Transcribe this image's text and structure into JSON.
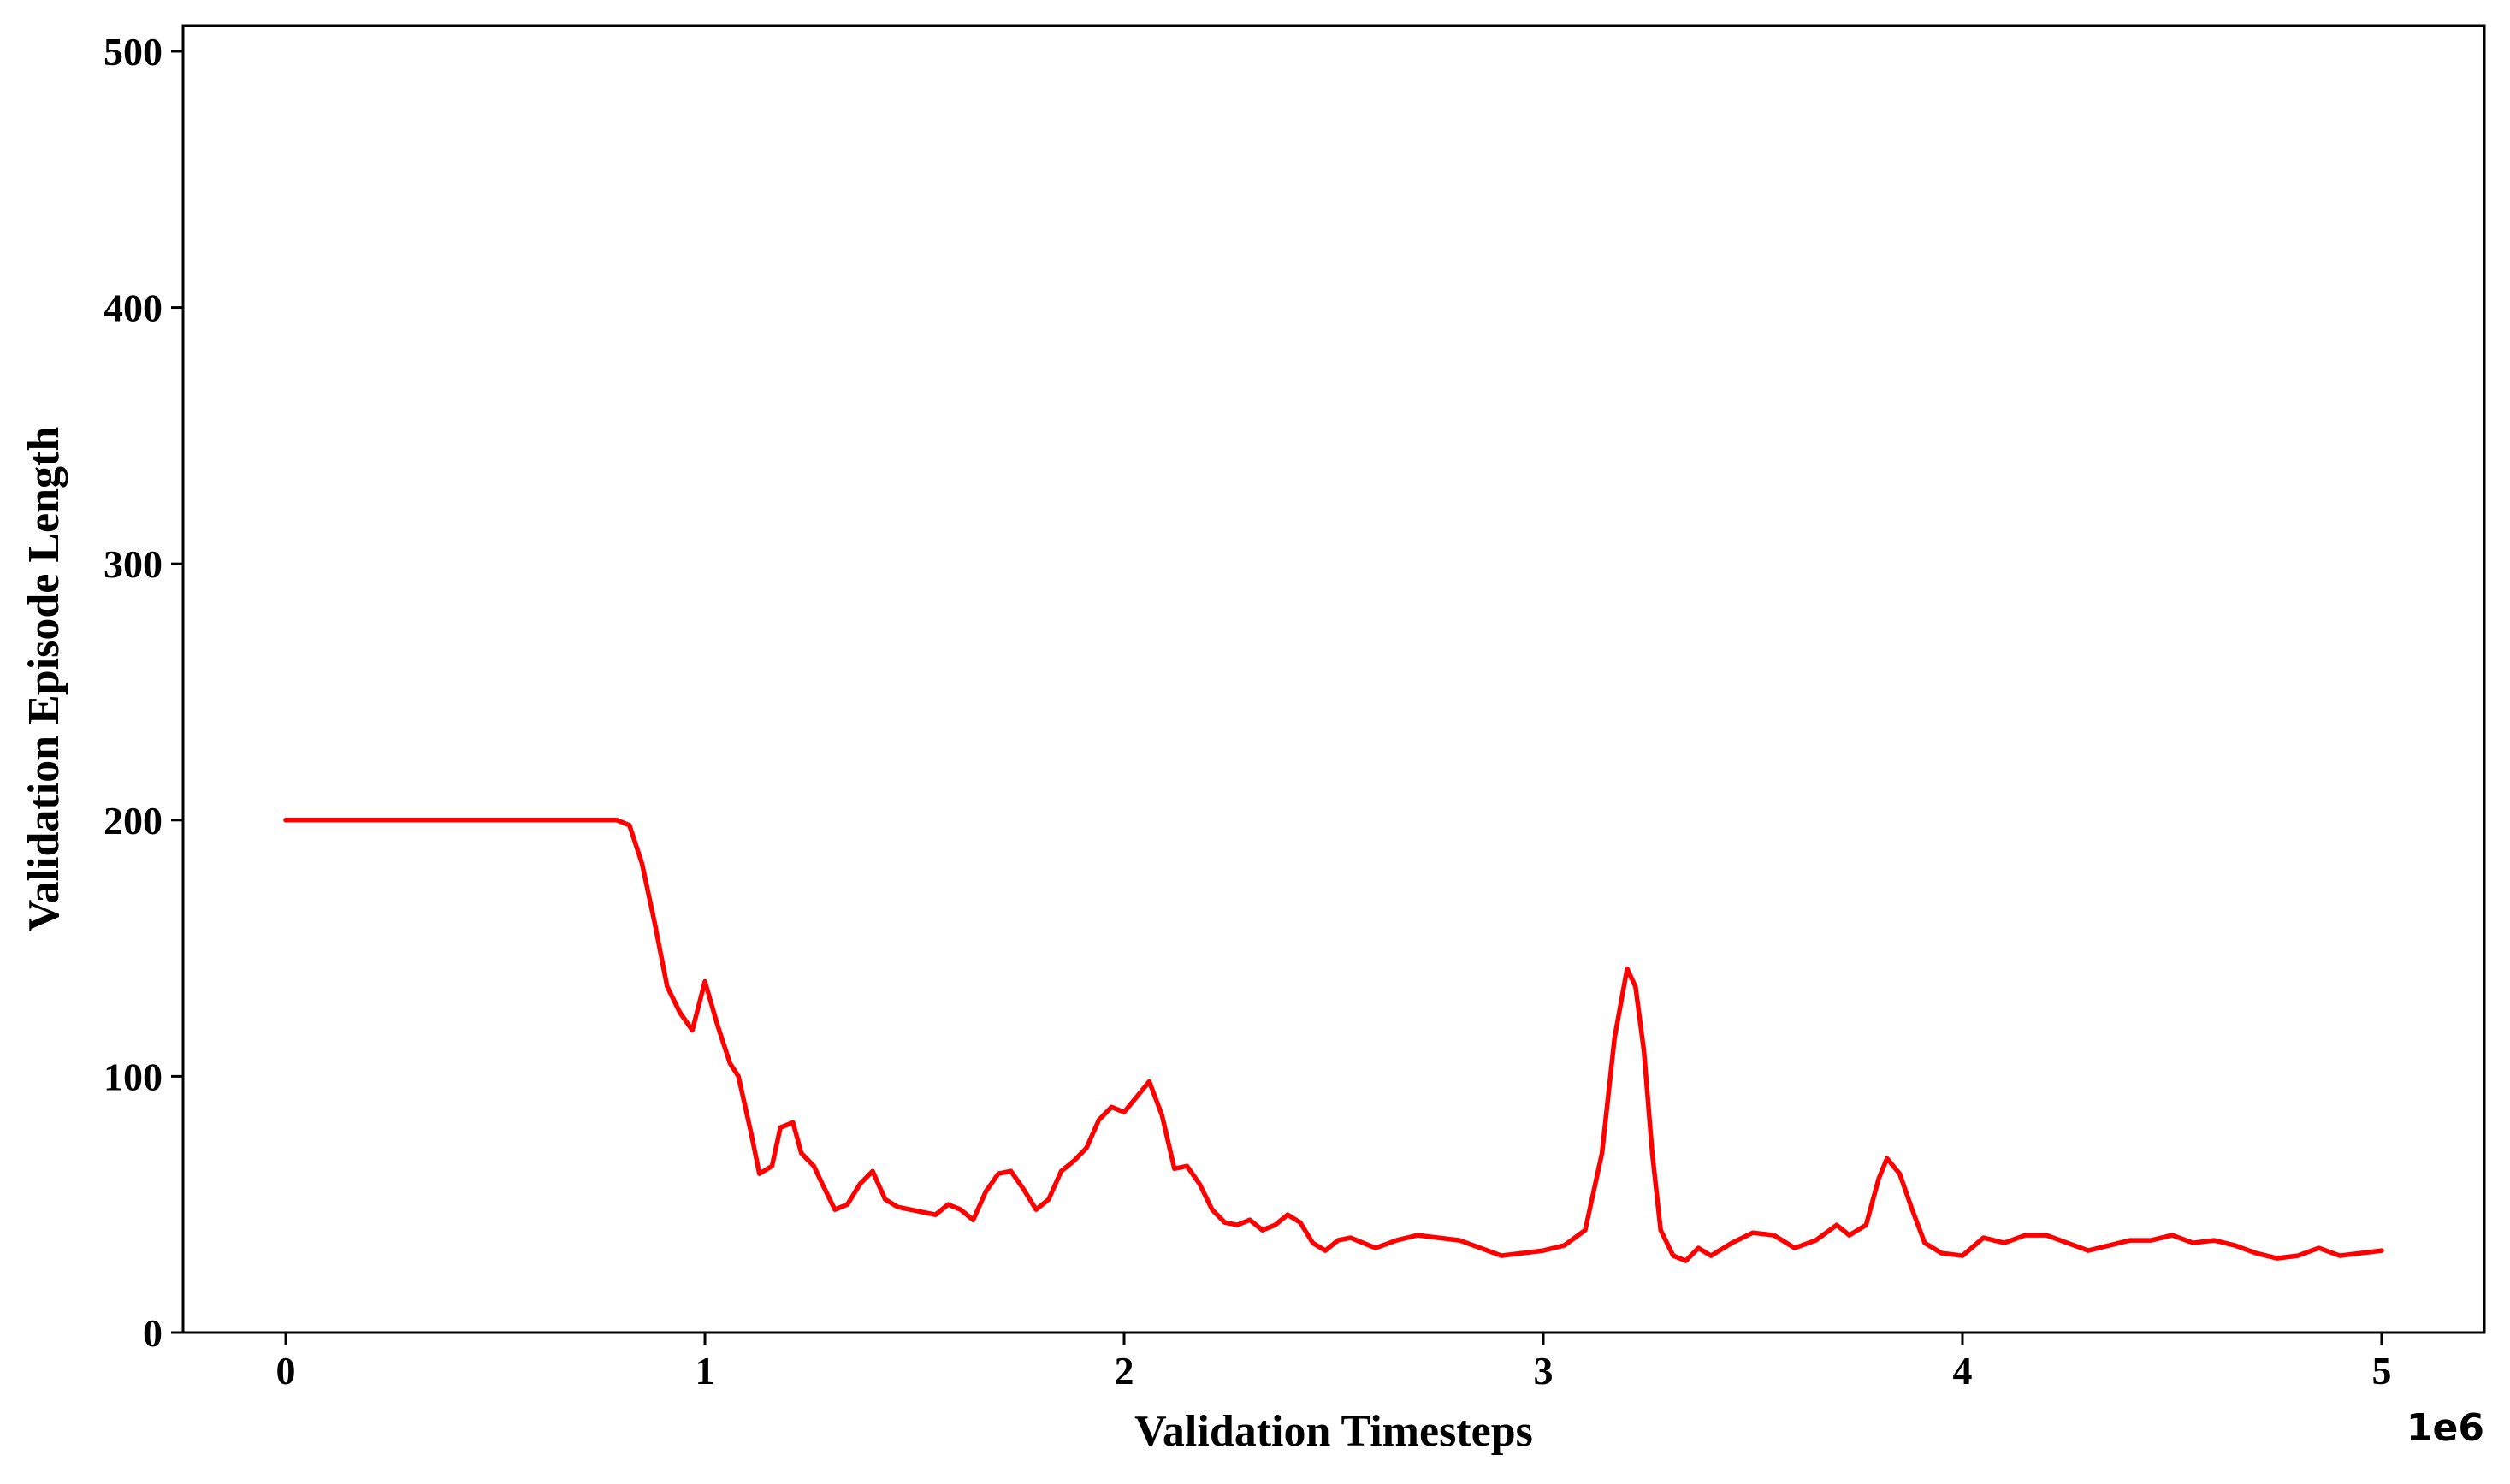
{
  "chart_data": {
    "type": "line",
    "xlabel": "Validation Timesteps",
    "ylabel": "Validation Episode Length",
    "x_offset_label": "1e6",
    "xlim": [
      -0.245,
      5.245
    ],
    "ylim": [
      0,
      510
    ],
    "x_ticks": [
      0,
      1,
      2,
      3,
      4,
      5
    ],
    "y_ticks": [
      0,
      100,
      200,
      300,
      400,
      500
    ],
    "grid": false,
    "line_color": "#ff0000",
    "series": [
      {
        "x": [
          0,
          0.2,
          0.4,
          0.6,
          0.79,
          0.82,
          0.85,
          0.88,
          0.91,
          0.94,
          0.97,
          1.0,
          1.03,
          1.06,
          1.08,
          1.11,
          1.13,
          1.16,
          1.18,
          1.21,
          1.23,
          1.26,
          1.28,
          1.31,
          1.34,
          1.37,
          1.4,
          1.43,
          1.46,
          1.49,
          1.52,
          1.55,
          1.58,
          1.61,
          1.64,
          1.67,
          1.7,
          1.73,
          1.76,
          1.79,
          1.82,
          1.85,
          1.88,
          1.91,
          1.94,
          1.97,
          2.0,
          2.03,
          2.06,
          2.09,
          2.12,
          2.15,
          2.18,
          2.21,
          2.24,
          2.27,
          2.3,
          2.33,
          2.36,
          2.39,
          2.42,
          2.45,
          2.48,
          2.51,
          2.54,
          2.57,
          2.6,
          2.65,
          2.7,
          2.75,
          2.8,
          2.85,
          2.9,
          2.95,
          3.0,
          3.05,
          3.1,
          3.14,
          3.17,
          3.2,
          3.22,
          3.24,
          3.26,
          3.28,
          3.31,
          3.34,
          3.37,
          3.4,
          3.45,
          3.5,
          3.55,
          3.6,
          3.65,
          3.7,
          3.73,
          3.77,
          3.8,
          3.82,
          3.85,
          3.88,
          3.91,
          3.95,
          4.0,
          4.05,
          4.1,
          4.15,
          4.2,
          4.25,
          4.3,
          4.35,
          4.4,
          4.45,
          4.5,
          4.55,
          4.6,
          4.65,
          4.7,
          4.75,
          4.8,
          4.85,
          4.9,
          4.95,
          5.0
        ],
        "values": [
          200,
          200,
          200,
          200,
          200,
          198,
          183,
          160,
          135,
          125,
          118,
          137,
          120,
          105,
          100,
          78,
          62,
          65,
          80,
          82,
          70,
          65,
          58,
          48,
          50,
          58,
          63,
          52,
          49,
          48,
          47,
          46,
          50,
          48,
          44,
          55,
          62,
          63,
          56,
          48,
          52,
          63,
          67,
          72,
          83,
          88,
          86,
          92,
          98,
          85,
          64,
          65,
          58,
          48,
          43,
          42,
          44,
          40,
          42,
          46,
          43,
          35,
          32,
          36,
          37,
          35,
          33,
          36,
          38,
          37,
          36,
          33,
          30,
          31,
          32,
          34,
          40,
          70,
          115,
          142,
          135,
          110,
          70,
          40,
          30,
          28,
          33,
          30,
          35,
          39,
          38,
          33,
          36,
          42,
          38,
          42,
          60,
          68,
          62,
          48,
          35,
          31,
          30,
          37,
          35,
          38,
          38,
          35,
          32,
          34,
          36,
          36,
          38,
          35,
          36,
          34,
          31,
          29,
          30,
          33,
          30,
          31,
          32
        ]
      }
    ]
  }
}
